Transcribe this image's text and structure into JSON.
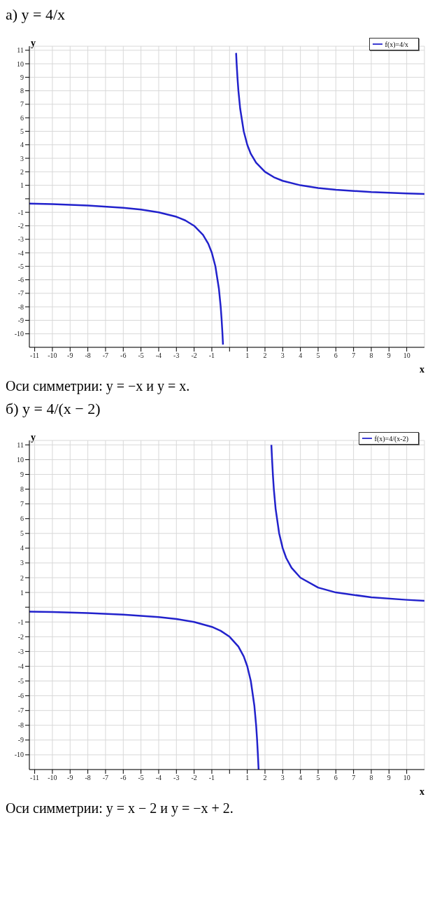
{
  "chart_data": [
    {
      "type": "line",
      "title": "а) y = 4/x",
      "xlabel": "x",
      "ylabel": "y",
      "legend": "top right",
      "grid": true,
      "marker": "none",
      "line_style": "solid",
      "x": [
        -11.3,
        -10,
        -8,
        -6,
        -5,
        -4,
        -3,
        -2.5,
        -2,
        -1.5,
        -1.2,
        -1,
        -0.8,
        -0.6,
        -0.5,
        -0.45,
        -0.4,
        -0.37,
        0,
        0.37,
        0.4,
        0.45,
        0.5,
        0.6,
        0.8,
        1,
        1.2,
        1.5,
        2,
        2.5,
        3,
        4,
        5,
        6,
        8,
        10,
        11
      ],
      "series": [
        {
          "name": "f(x)=4/x",
          "color": "#2222cc",
          "values": [
            -0.35,
            -0.4,
            -0.5,
            -0.67,
            -0.8,
            -1,
            -1.33,
            -1.6,
            -2,
            -2.67,
            -3.33,
            -4,
            -5,
            -6.67,
            -8,
            -8.9,
            -10,
            -10.8,
            null,
            10.8,
            10,
            8.9,
            8,
            6.67,
            5,
            4,
            3.33,
            2.67,
            2,
            1.6,
            1.33,
            1,
            0.8,
            0.67,
            0.5,
            0.4,
            0.36
          ]
        }
      ],
      "xlim": [
        -11.3,
        11
      ],
      "ylim": [
        -11,
        11.3
      ],
      "xticks": [
        -11,
        -10,
        -9,
        -8,
        -7,
        -6,
        -5,
        -4,
        -3,
        -2,
        -1,
        {
          "value": 0,
          "label": null
        },
        1,
        2,
        3,
        4,
        5,
        6,
        7,
        8,
        9,
        10
      ],
      "yticks": [
        -10,
        -9,
        -8,
        -7,
        -6,
        -5,
        -4,
        -3,
        -2,
        -1,
        {
          "value": 0,
          "label": null
        },
        1,
        2,
        3,
        4,
        5,
        6,
        7,
        8,
        9,
        10,
        11
      ],
      "annotations": [
        "Оси симметрии: y = −x и y = x."
      ]
    },
    {
      "type": "line",
      "title": "б) y = 4/(x − 2)",
      "xlabel": "x",
      "ylabel": "y",
      "legend": "top right",
      "grid": true,
      "marker": "none",
      "line_style": "solid",
      "x": [
        -11.3,
        -10,
        -8,
        -6,
        -4,
        -3,
        -2,
        -1,
        -0.5,
        0,
        0.5,
        0.8,
        1,
        1.2,
        1.4,
        1.5,
        1.55,
        1.6,
        1.64,
        2,
        2.36,
        2.4,
        2.45,
        2.5,
        2.6,
        2.8,
        3,
        3.2,
        3.5,
        4,
        5,
        6,
        8,
        10,
        11
      ],
      "series": [
        {
          "name": "f(x)=4/(x-2)",
          "color": "#2222cc",
          "values": [
            -0.3,
            -0.33,
            -0.4,
            -0.5,
            -0.67,
            -0.8,
            -1,
            -1.33,
            -1.6,
            -2,
            -2.67,
            -3.33,
            -4,
            -5,
            -6.67,
            -8,
            -8.9,
            -10,
            -11,
            null,
            11,
            10,
            8.9,
            8,
            6.67,
            5,
            4,
            3.33,
            2.67,
            2,
            1.33,
            1,
            0.67,
            0.5,
            0.44
          ]
        }
      ],
      "xlim": [
        -11.3,
        11
      ],
      "ylim": [
        -11,
        11.3
      ],
      "xticks": [
        -11,
        -10,
        -9,
        -8,
        -7,
        -6,
        -5,
        -4,
        -3,
        -2,
        -1,
        {
          "value": 0,
          "label": null
        },
        1,
        2,
        3,
        4,
        5,
        6,
        7,
        8,
        9,
        10
      ],
      "yticks": [
        -10,
        -9,
        -8,
        -7,
        -6,
        -5,
        -4,
        -3,
        -2,
        -1,
        {
          "value": 0,
          "label": null
        },
        1,
        2,
        3,
        4,
        5,
        6,
        7,
        8,
        9,
        10,
        11
      ],
      "annotations": [
        "Оси симметрии: y = x − 2 и y = −x + 2."
      ]
    }
  ]
}
